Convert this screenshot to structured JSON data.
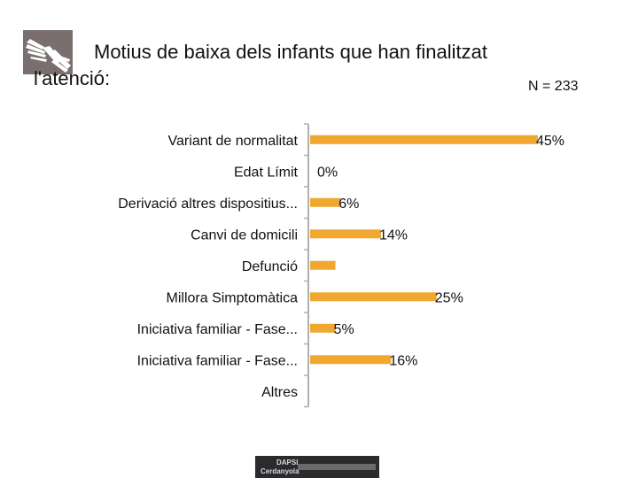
{
  "title": {
    "line1": "Motius de baixa dels infants que han finalitzat",
    "line2": "l'atenció:"
  },
  "n_label": "N = 233",
  "footer_logo": {
    "line1": "DAPSI",
    "line2": "Cerdanyola"
  },
  "chart_data": {
    "type": "bar",
    "orientation": "horizontal",
    "categories": [
      "Variant de normalitat",
      "Edat Límit",
      "Derivació altres dispositius...",
      "Canvi de domicili",
      "Defunció",
      "Millora Simptomàtica",
      "Iniciativa familiar - Fase...",
      "Iniciativa familiar - Fase...",
      "Altres"
    ],
    "values": [
      45,
      0,
      6,
      14,
      5,
      25,
      5,
      16,
      0
    ],
    "labels": [
      "45%",
      "0%",
      "6%",
      "14%",
      "",
      "25%",
      "5%",
      "16%",
      ""
    ],
    "xlim": [
      0,
      50
    ],
    "bar_color": "#f0a830",
    "axis_color": "#b0b0b0",
    "grid": false,
    "legend": "none"
  }
}
